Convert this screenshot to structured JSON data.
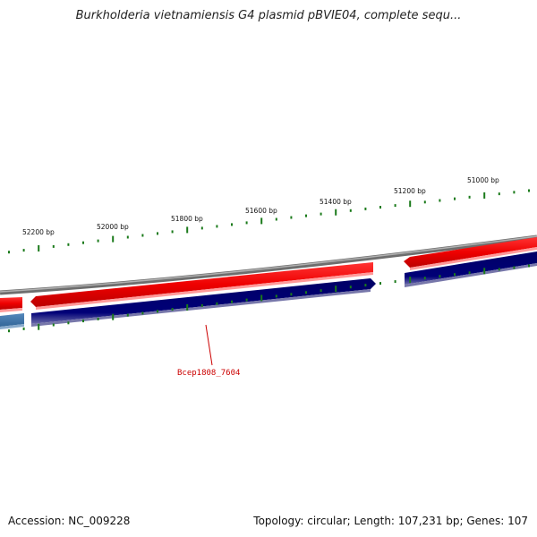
{
  "title": "Burkholderia vietnamiensis G4 plasmid pBVIE04, complete sequ...",
  "footer": {
    "accession": "Accession: NC_009228",
    "summary": "Topology: circular; Length: 107,231 bp; Genes: 107"
  },
  "map": {
    "tick_labels": [
      "51000 bp",
      "51200 bp",
      "51400 bp",
      "51600 bp",
      "51800 bp",
      "52000 bp",
      "52200 bp"
    ],
    "gene_label": "Bcep1808_7604",
    "colors": {
      "backbone": "#808080",
      "forward_strand_gene": "#ee0000",
      "reverse_strand_gene": "#000077",
      "reverse_strand_gene_alt": "#4477aa",
      "scale_ticks": "#1a7a1a",
      "gene_label": "#cc0000"
    }
  }
}
